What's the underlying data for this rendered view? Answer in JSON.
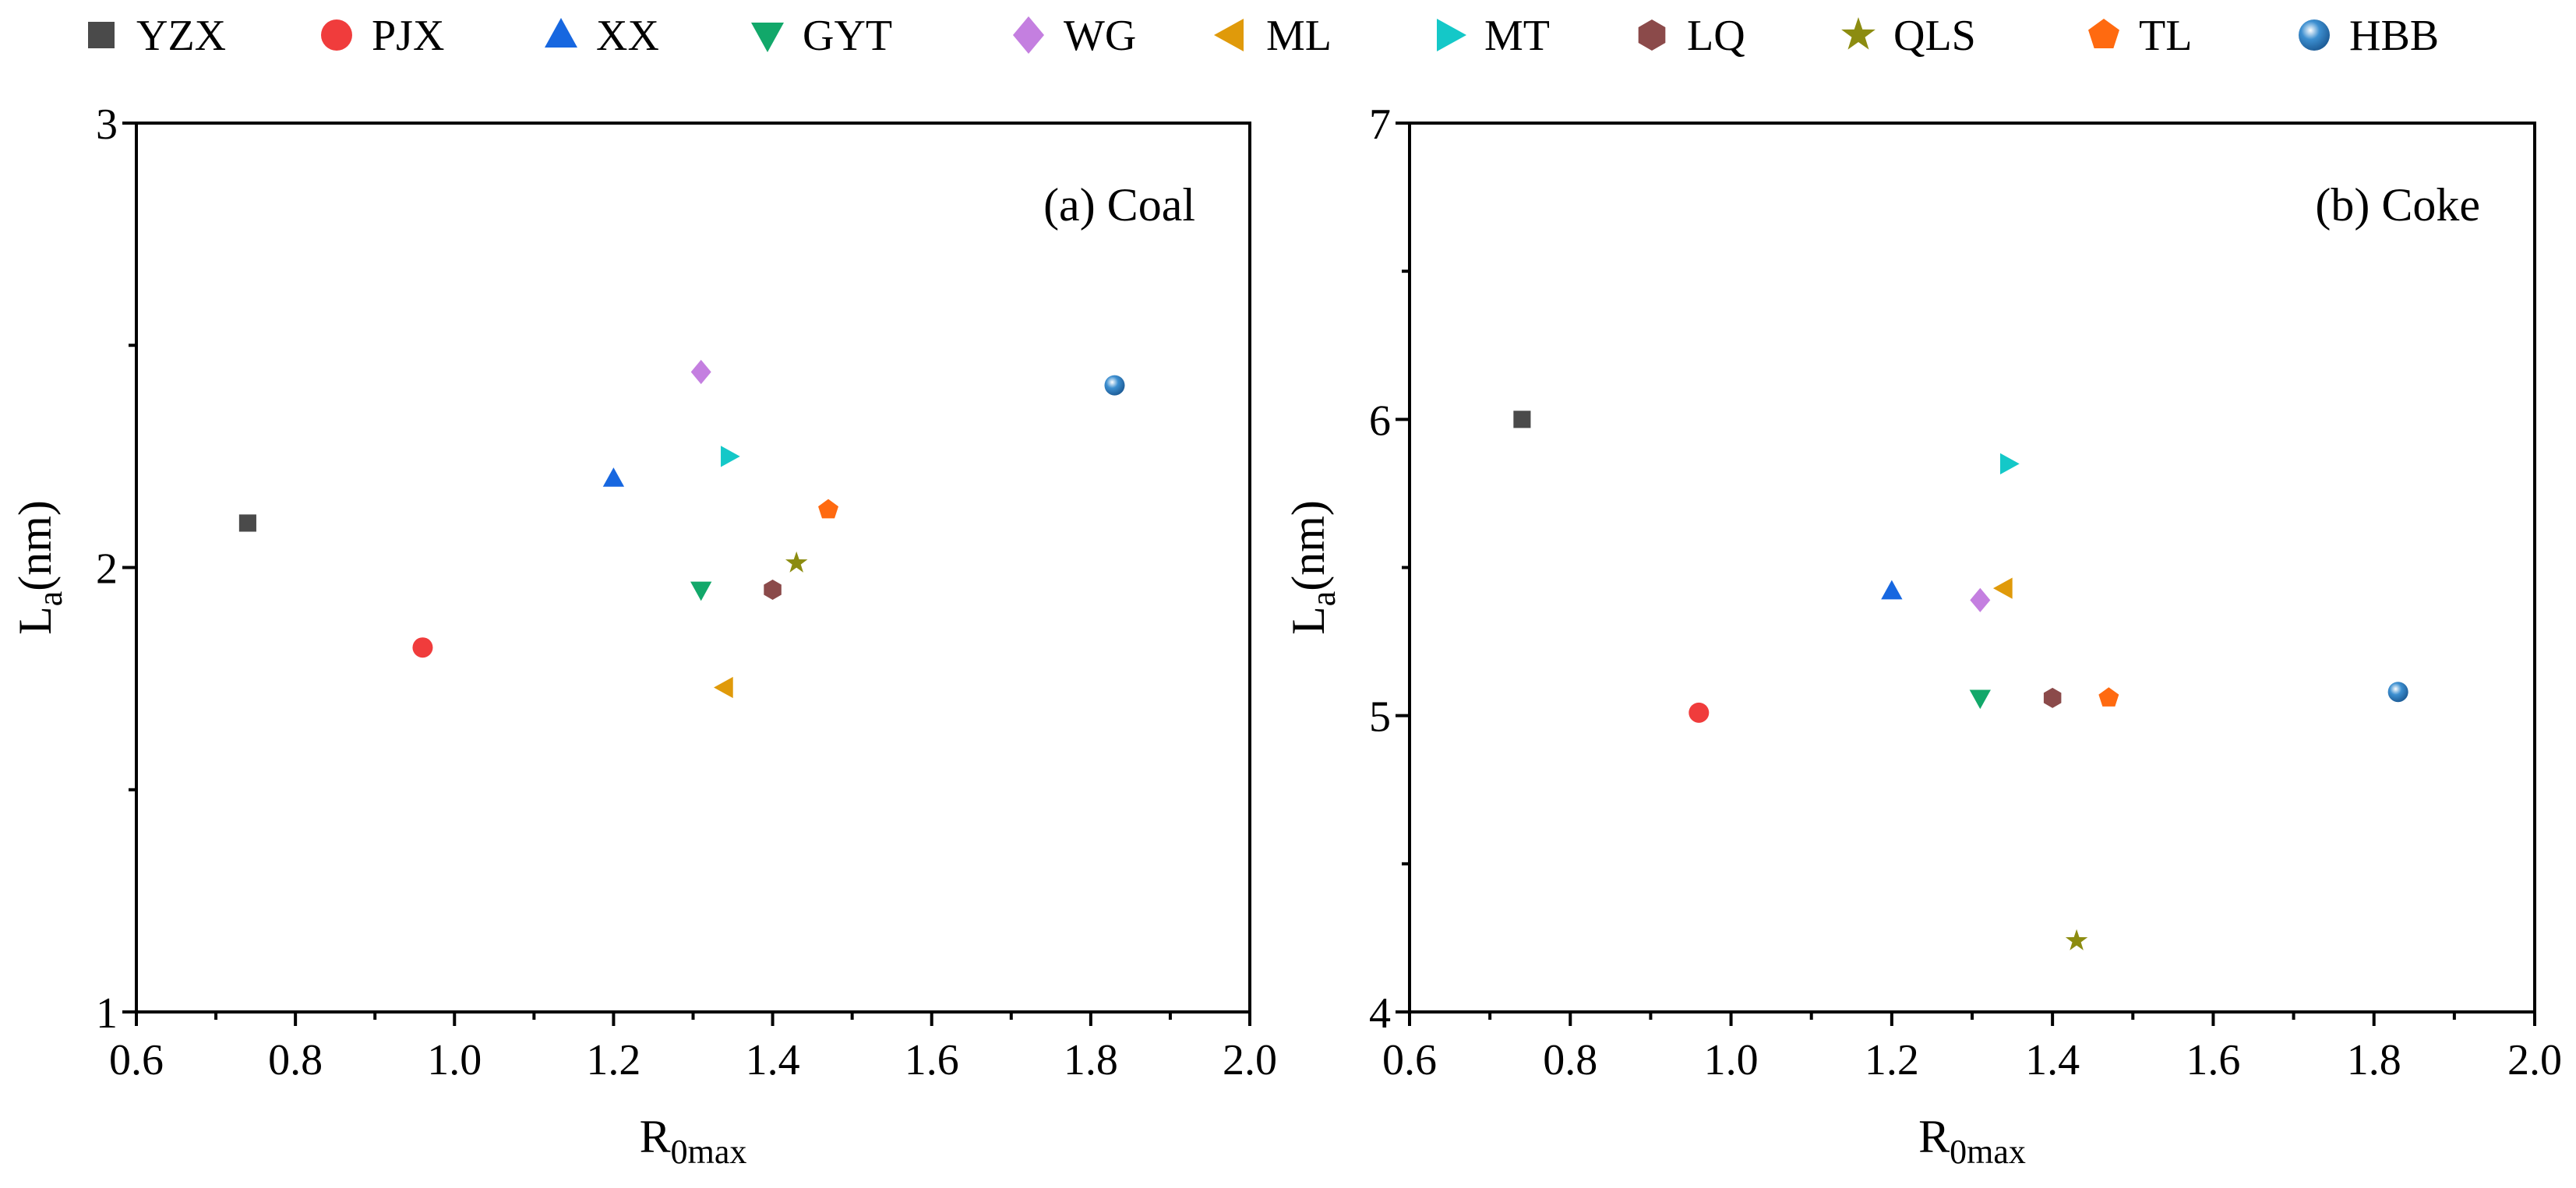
{
  "chart_data": {
    "type": "scatter",
    "legend": {
      "placement": "top",
      "entries": [
        {
          "name": "YZX",
          "marker": "square",
          "color": "#4a4a4a"
        },
        {
          "name": "PJX",
          "marker": "circle",
          "color": "#f03c3c"
        },
        {
          "name": "XX",
          "marker": "triangle-up",
          "color": "#1767e0"
        },
        {
          "name": "GYT",
          "marker": "triangle-down",
          "color": "#12a86a"
        },
        {
          "name": "WG",
          "marker": "diamond",
          "color": "#c47fe0"
        },
        {
          "name": "ML",
          "marker": "triangle-left",
          "color": "#e09a0a"
        },
        {
          "name": "MT",
          "marker": "triangle-right",
          "color": "#14c8c8"
        },
        {
          "name": "LQ",
          "marker": "hexagon",
          "color": "#8b4a4a"
        },
        {
          "name": "QLS",
          "marker": "star",
          "color": "#8c8c10"
        },
        {
          "name": "TL",
          "marker": "pentagon",
          "color": "#ff6a10"
        },
        {
          "name": "HBB",
          "marker": "sphere",
          "color": "#3d8fd0"
        }
      ]
    },
    "panels": [
      {
        "panel_label": "(a) Coal",
        "xlabel_main": "R",
        "xlabel_sub": "0max",
        "ylabel_main": "L",
        "ylabel_sub": "a",
        "ylabel_unit": "(nm)",
        "xlim": [
          0.6,
          2.0
        ],
        "ylim": [
          1,
          3
        ],
        "xticks": [
          "0.6",
          "0.8",
          "1.0",
          "1.2",
          "1.4",
          "1.6",
          "1.8",
          "2.0"
        ],
        "yticks": [
          "1",
          "2",
          "3"
        ],
        "grid": false,
        "points": [
          {
            "name": "YZX",
            "x": 0.74,
            "y": 2.1
          },
          {
            "name": "PJX",
            "x": 0.96,
            "y": 1.82
          },
          {
            "name": "XX",
            "x": 1.2,
            "y": 2.2
          },
          {
            "name": "GYT",
            "x": 1.31,
            "y": 1.95
          },
          {
            "name": "WG",
            "x": 1.31,
            "y": 2.44
          },
          {
            "name": "ML",
            "x": 1.34,
            "y": 1.73
          },
          {
            "name": "MT",
            "x": 1.345,
            "y": 2.25
          },
          {
            "name": "LQ",
            "x": 1.4,
            "y": 1.95
          },
          {
            "name": "QLS",
            "x": 1.43,
            "y": 2.01
          },
          {
            "name": "TL",
            "x": 1.47,
            "y": 2.13
          },
          {
            "name": "HBB",
            "x": 1.83,
            "y": 2.41
          }
        ]
      },
      {
        "panel_label": "(b) Coke",
        "xlabel_main": "R",
        "xlabel_sub": "0max",
        "ylabel_main": "L",
        "ylabel_sub": "a",
        "ylabel_unit": "(nm)",
        "xlim": [
          0.6,
          2.0
        ],
        "ylim": [
          4,
          7
        ],
        "xticks": [
          "0.6",
          "0.8",
          "1.0",
          "1.2",
          "1.4",
          "1.6",
          "1.8",
          "2.0"
        ],
        "yticks": [
          "4",
          "5",
          "6",
          "7"
        ],
        "grid": false,
        "points": [
          {
            "name": "YZX",
            "x": 0.74,
            "y": 6.0
          },
          {
            "name": "PJX",
            "x": 0.96,
            "y": 5.01
          },
          {
            "name": "XX",
            "x": 1.2,
            "y": 5.42
          },
          {
            "name": "GYT",
            "x": 1.31,
            "y": 5.06
          },
          {
            "name": "WG",
            "x": 1.31,
            "y": 5.39
          },
          {
            "name": "ML",
            "x": 1.34,
            "y": 5.43
          },
          {
            "name": "MT",
            "x": 1.345,
            "y": 5.85
          },
          {
            "name": "LQ",
            "x": 1.4,
            "y": 5.06
          },
          {
            "name": "QLS",
            "x": 1.43,
            "y": 4.24
          },
          {
            "name": "TL",
            "x": 1.47,
            "y": 5.06
          },
          {
            "name": "HBB",
            "x": 1.83,
            "y": 5.08
          }
        ]
      }
    ]
  }
}
